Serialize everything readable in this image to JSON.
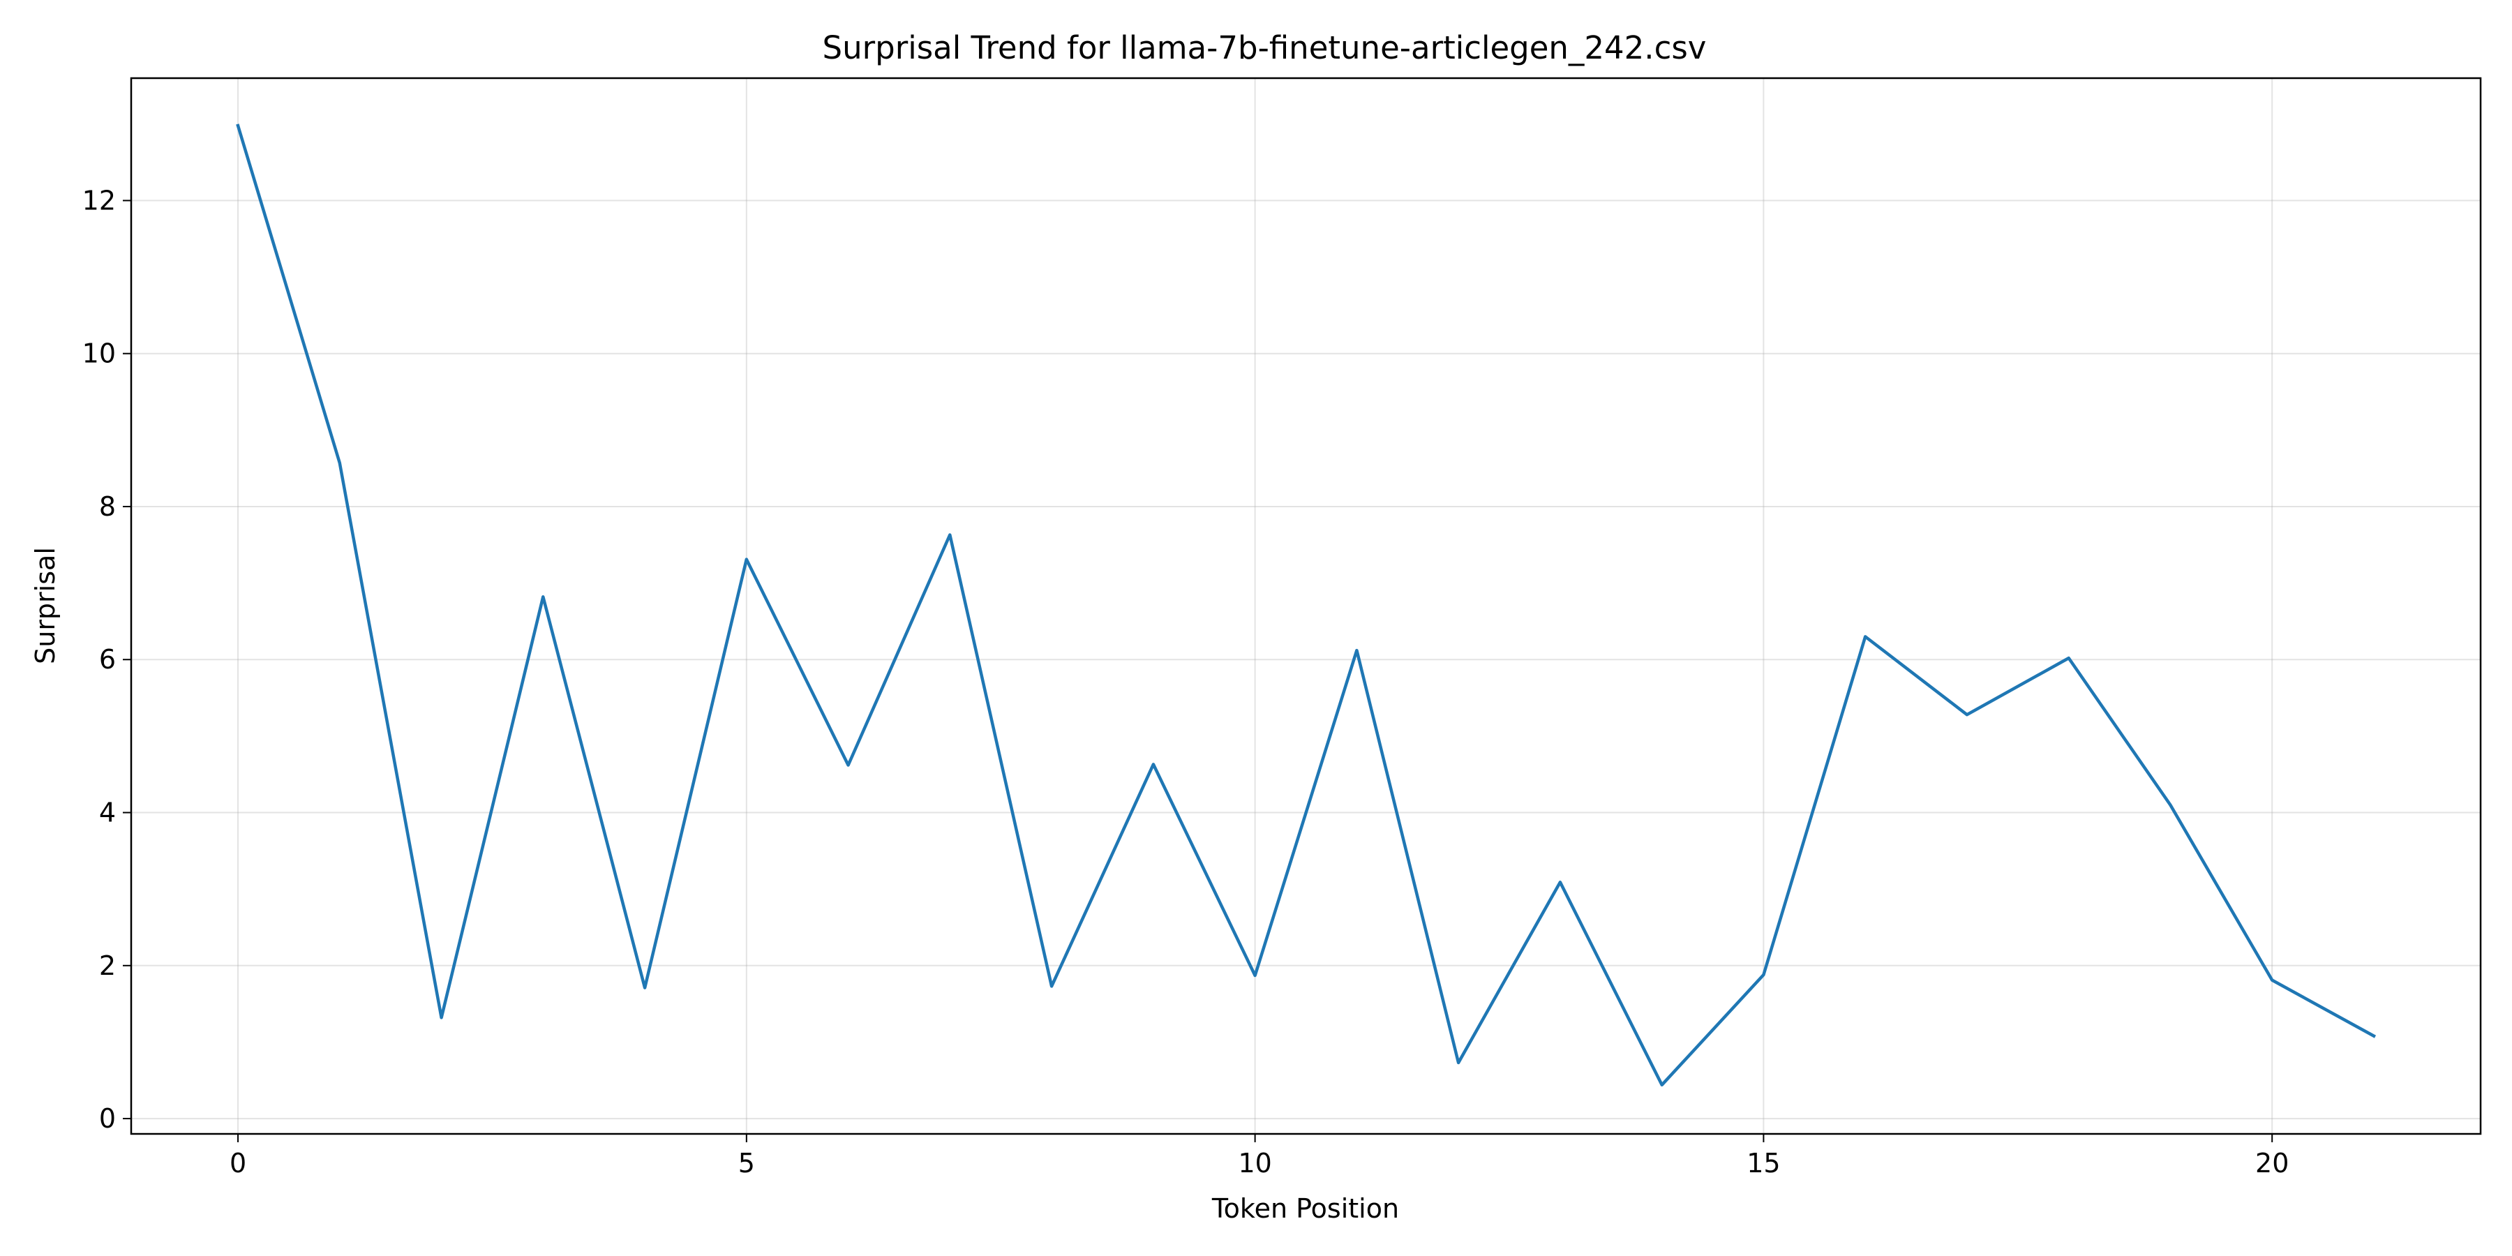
{
  "chart_data": {
    "type": "line",
    "title": "Surprisal Trend for llama-7b-finetune-articlegen_242.csv",
    "xlabel": "Token Position",
    "ylabel": "Surprisal",
    "xlim": [
      -1.05,
      22.05
    ],
    "ylim": [
      -0.2,
      13.6
    ],
    "xticks": [
      0,
      5,
      10,
      15,
      20
    ],
    "yticks": [
      0,
      2,
      4,
      6,
      8,
      10,
      12
    ],
    "grid": true,
    "color": "#1f77b4",
    "series": [
      {
        "x": [
          0,
          1,
          2,
          3,
          4,
          5,
          6,
          7,
          8,
          9,
          10,
          11,
          12,
          13,
          14,
          15,
          16,
          17,
          18,
          19,
          20,
          21
        ],
        "values": [
          12.98,
          8.57,
          1.32,
          6.82,
          1.71,
          7.31,
          4.62,
          7.63,
          1.73,
          4.63,
          1.87,
          6.12,
          0.73,
          3.09,
          0.44,
          1.88,
          6.3,
          5.28,
          6.02,
          4.1,
          1.81,
          1.08
        ]
      }
    ]
  }
}
